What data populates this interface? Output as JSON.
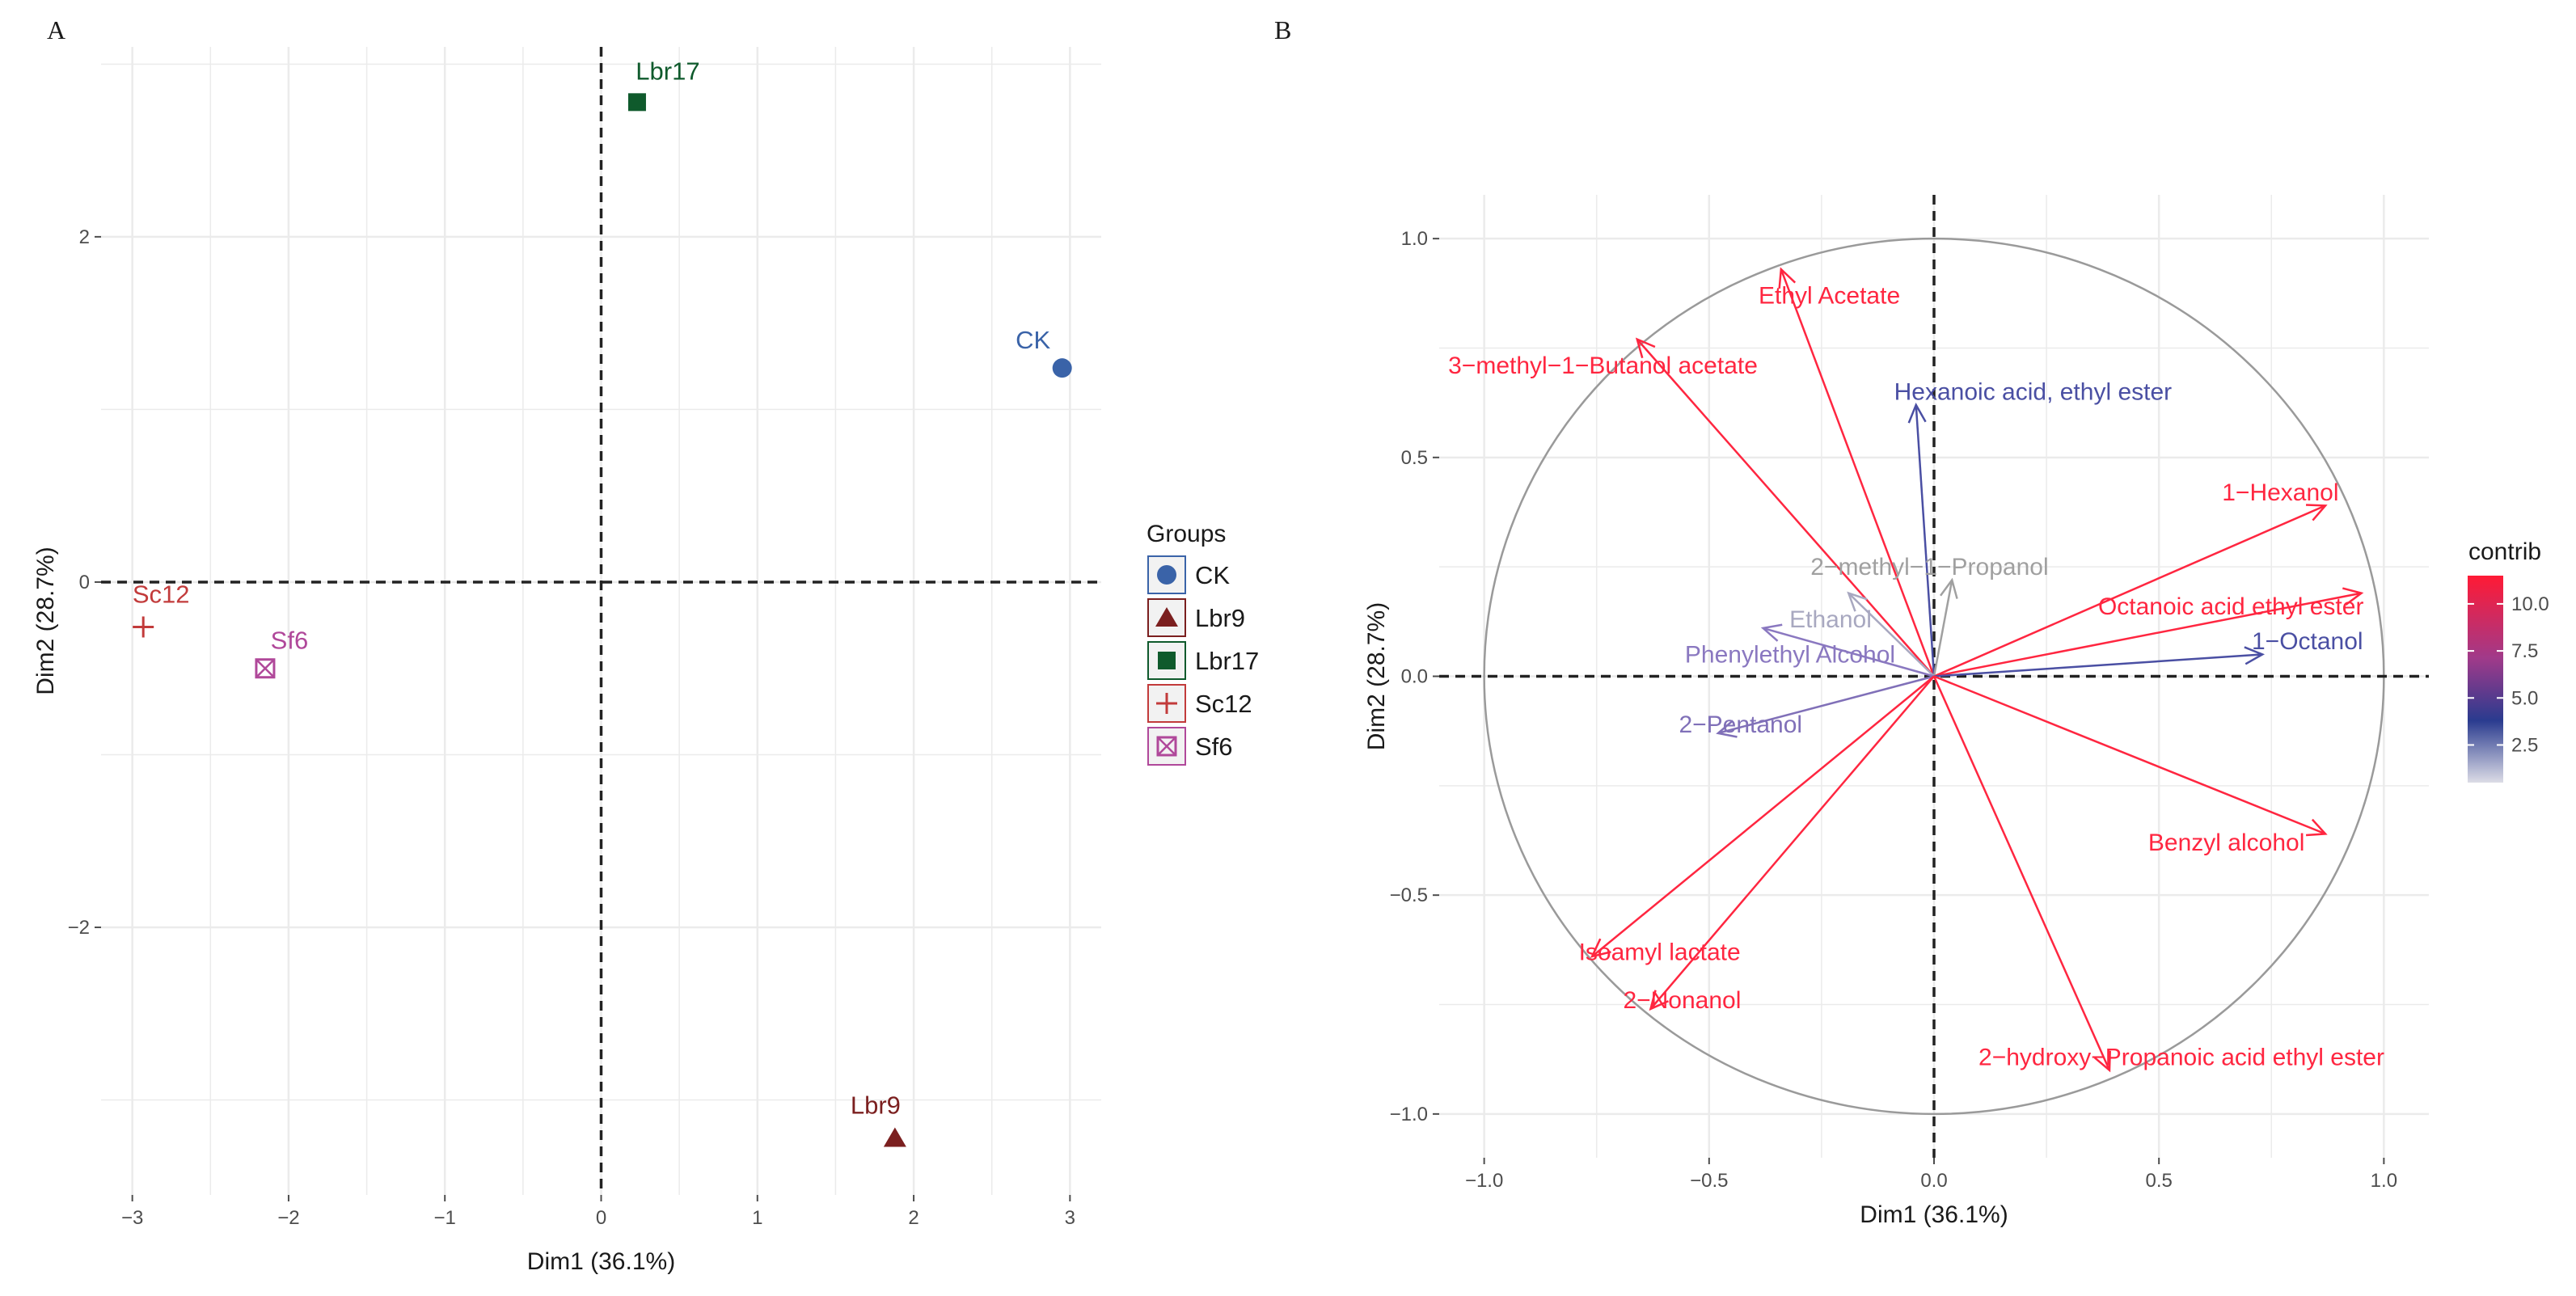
{
  "chart_data": [
    {
      "panel": "A",
      "type": "scatter",
      "xlabel": "Dim1 (36.1%)",
      "ylabel": "Dim2 (28.7%)",
      "xlim": [
        -3.2,
        3.2
      ],
      "ylim": [
        -3.55,
        3.1
      ],
      "xticks": [
        -3,
        -2,
        -1,
        0,
        1,
        2,
        3
      ],
      "yticks": [
        -2,
        0,
        2
      ],
      "legend_title": "Groups",
      "points": [
        {
          "name": "CK",
          "x": 2.95,
          "y": 1.24,
          "color": "#3a63a8",
          "shape": "circle"
        },
        {
          "name": "Lbr9",
          "x": 1.88,
          "y": -3.22,
          "color": "#7b1f1f",
          "shape": "triangle"
        },
        {
          "name": "Lbr17",
          "x": 0.23,
          "y": 2.78,
          "color": "#0f5a2c",
          "shape": "square"
        },
        {
          "name": "Sc12",
          "x": -2.93,
          "y": -0.26,
          "color": "#c23b3b",
          "shape": "plus"
        },
        {
          "name": "Sf6",
          "x": -2.15,
          "y": -0.5,
          "color": "#b0489a",
          "shape": "boxx"
        }
      ]
    },
    {
      "panel": "B",
      "type": "scatter",
      "subtype": "pca_variable_correlation_circle",
      "xlabel": "Dim1 (36.1%)",
      "ylabel": "Dim2 (28.7%)",
      "xlim": [
        -1.1,
        1.1
      ],
      "ylim": [
        -1.1,
        1.1
      ],
      "xticks": [
        -1.0,
        -0.5,
        0.0,
        0.5,
        1.0
      ],
      "yticks": [
        -1.0,
        -0.5,
        0.0,
        0.5,
        1.0
      ],
      "tick_labels": [
        "-1.0",
        "-0.5",
        "0.0",
        "0.5",
        "1.0"
      ],
      "legend_title": "contrib",
      "colorbar_ticks": [
        "10.0",
        "7.5",
        "5.0",
        "2.5"
      ],
      "colorbar_values": [
        10.0,
        7.5,
        5.0,
        2.5
      ],
      "colorbar_range": [
        0.5,
        11.5
      ],
      "vectors": [
        {
          "name": "Ethyl Acetate",
          "x": -0.34,
          "y": 0.93,
          "color": "#ff2640",
          "lx": -0.39,
          "ly": 0.87,
          "anchor": "start"
        },
        {
          "name": "3-methyl-1-Butanol acetate",
          "x": -0.66,
          "y": 0.77,
          "color": "#ff2640",
          "lx": -1.08,
          "ly": 0.71,
          "anchor": "start"
        },
        {
          "name": "Hexanoic acid, ethyl ester",
          "x": -0.04,
          "y": 0.62,
          "color": "#4a4fa3",
          "lx": 0.22,
          "ly": 0.65,
          "anchor": "middle"
        },
        {
          "name": "1-Hexanol",
          "x": 0.87,
          "y": 0.39,
          "color": "#ff2640",
          "lx": 0.77,
          "ly": 0.42,
          "anchor": "middle"
        },
        {
          "name": "2-methyl-1-Propanol",
          "x": 0.04,
          "y": 0.22,
          "color": "#a0a0a0",
          "lx": -0.01,
          "ly": 0.25,
          "anchor": "middle"
        },
        {
          "name": "Octanoic acid ethyl ester",
          "x": 0.95,
          "y": 0.19,
          "color": "#ff2640",
          "lx": 0.66,
          "ly": 0.16,
          "anchor": "middle"
        },
        {
          "name": "Ethanol",
          "x": -0.19,
          "y": 0.19,
          "color": "#a8a8c0",
          "lx": -0.23,
          "ly": 0.13,
          "anchor": "middle"
        },
        {
          "name": "1-Octanol",
          "x": 0.73,
          "y": 0.05,
          "color": "#4a4fa3",
          "lx": 0.83,
          "ly": 0.08,
          "anchor": "middle"
        },
        {
          "name": "Phenylethyl Alcohol",
          "x": -0.38,
          "y": 0.11,
          "color": "#8a78c0",
          "lx": -0.32,
          "ly": 0.05,
          "anchor": "middle"
        },
        {
          "name": "2-Pentanol",
          "x": -0.48,
          "y": -0.13,
          "color": "#8070b8",
          "lx": -0.43,
          "ly": -0.11,
          "anchor": "middle"
        },
        {
          "name": "Benzyl alcohol",
          "x": 0.87,
          "y": -0.36,
          "color": "#ff2640",
          "lx": 0.65,
          "ly": -0.38,
          "anchor": "middle"
        },
        {
          "name": "Isoamyl lactate",
          "x": -0.76,
          "y": -0.64,
          "color": "#ff2640",
          "lx": -0.61,
          "ly": -0.63,
          "anchor": "middle"
        },
        {
          "name": "2-Nonanol",
          "x": -0.63,
          "y": -0.76,
          "color": "#ff2640",
          "lx": -0.56,
          "ly": -0.74,
          "anchor": "middle"
        },
        {
          "name": "2-hydroxy-Propanoic acid ethyl ester",
          "x": 0.39,
          "y": -0.9,
          "color": "#ff2640",
          "lx": 0.55,
          "ly": -0.87,
          "anchor": "middle"
        }
      ]
    }
  ]
}
